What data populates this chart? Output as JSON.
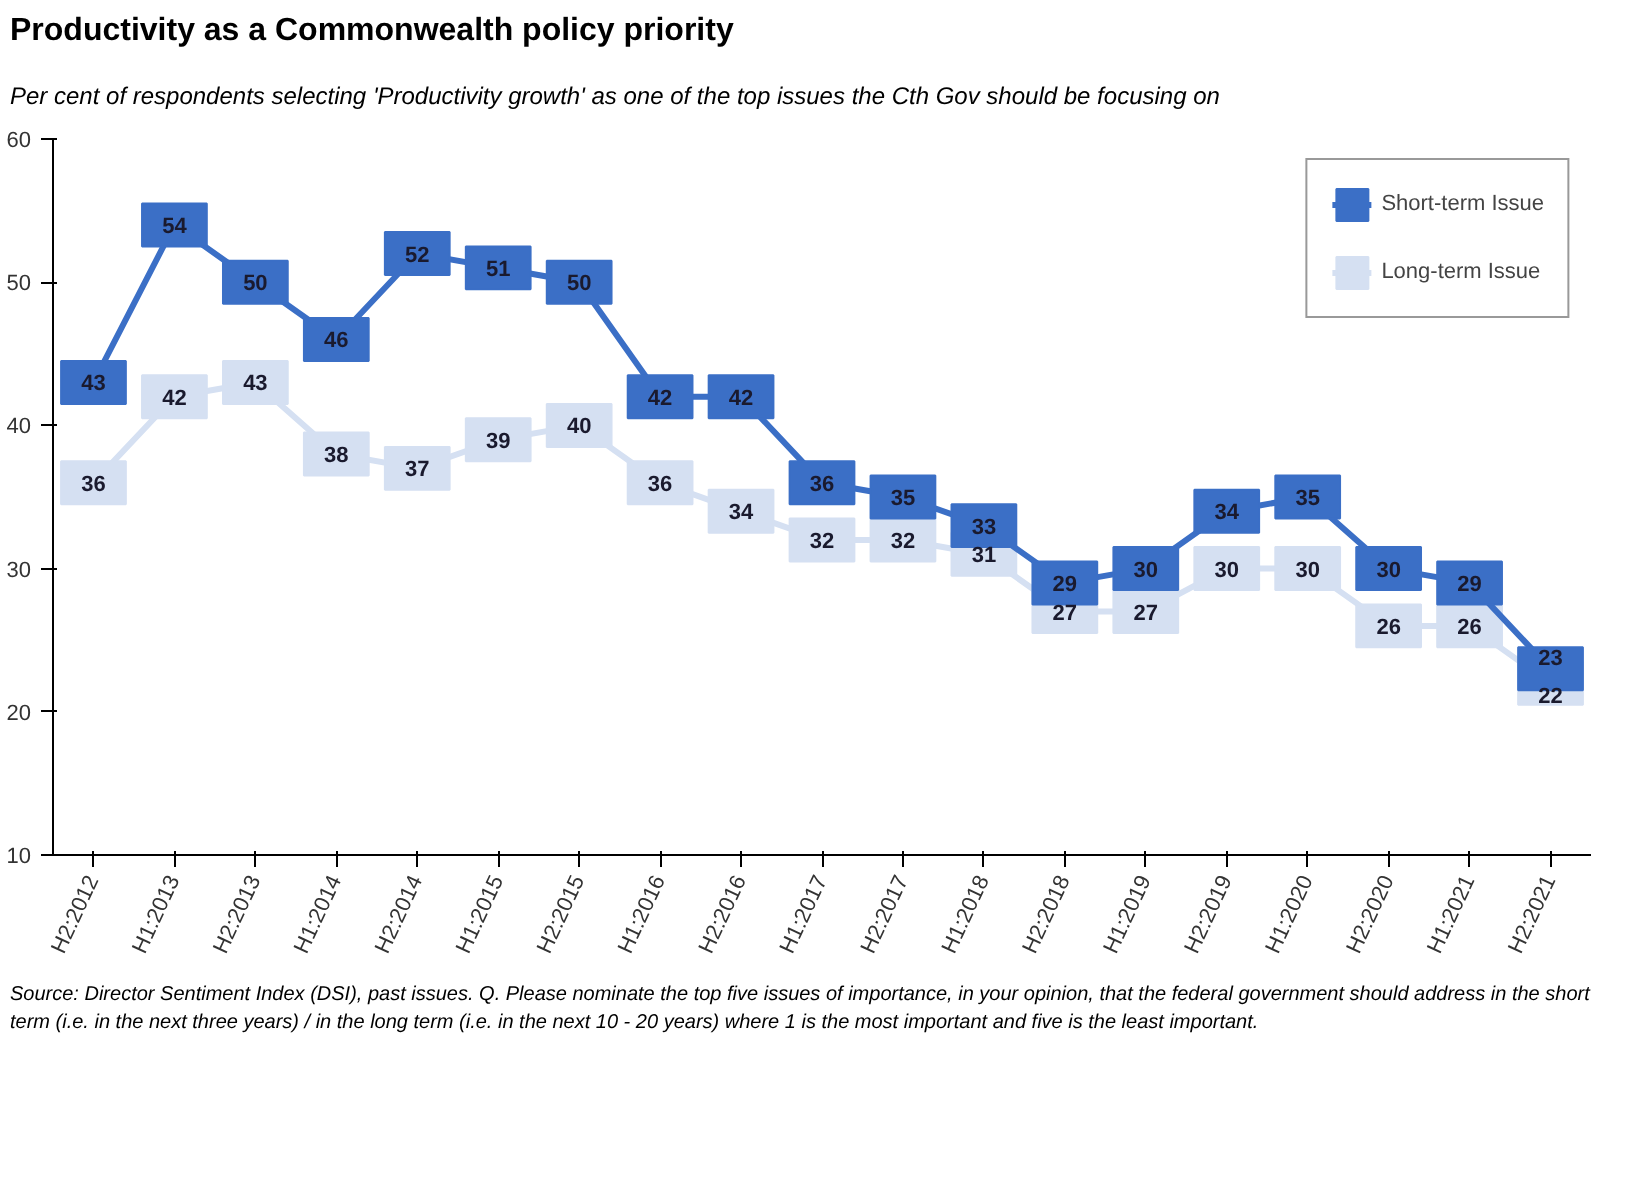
{
  "chart_data": {
    "type": "line",
    "title": "Productivity as a Commonwealth policy priority",
    "subtitle": "Per cent of respondents selecting 'Productivity growth' as one of the top issues the Cth Gov should be focusing on",
    "categories": [
      "H2:2012",
      "H1:2013",
      "H2:2013",
      "H1:2014",
      "H2:2014",
      "H1:2015",
      "H2:2015",
      "H1:2016",
      "H2:2016",
      "H1:2017",
      "H2:2017",
      "H1:2018",
      "H2:2018",
      "H1:2019",
      "H2:2019",
      "H1:2020",
      "H2:2020",
      "H1:2021",
      "H2:2021"
    ],
    "series": [
      {
        "name": "Short-term Issue",
        "color": "#3b6fc6",
        "values": [
          43,
          54,
          50,
          46,
          52,
          51,
          50,
          42,
          42,
          36,
          35,
          33,
          29,
          30,
          34,
          35,
          30,
          29,
          23
        ]
      },
      {
        "name": "Long-term Issue",
        "color": "#d5e0f2",
        "values": [
          36,
          42,
          43,
          38,
          37,
          39,
          40,
          36,
          34,
          32,
          32,
          31,
          27,
          27,
          30,
          30,
          26,
          26,
          22
        ]
      }
    ],
    "ylim": [
      10,
      60
    ],
    "yticks": [
      10,
      20,
      30,
      40,
      50,
      60
    ],
    "grid": false,
    "legend": "top right",
    "marker": "square",
    "line_style": "solid",
    "data_labels": true,
    "annotations": [
      "Source: Director Sentiment Index (DSI), past issues. Q. Please nominate the top five issues of importance, in your opinion, that the federal government should address in the short term (i.e. in the next three years) / in the long term (i.e. in the next 10 - 20 years) where 1 is the most important and five is the least important."
    ]
  }
}
